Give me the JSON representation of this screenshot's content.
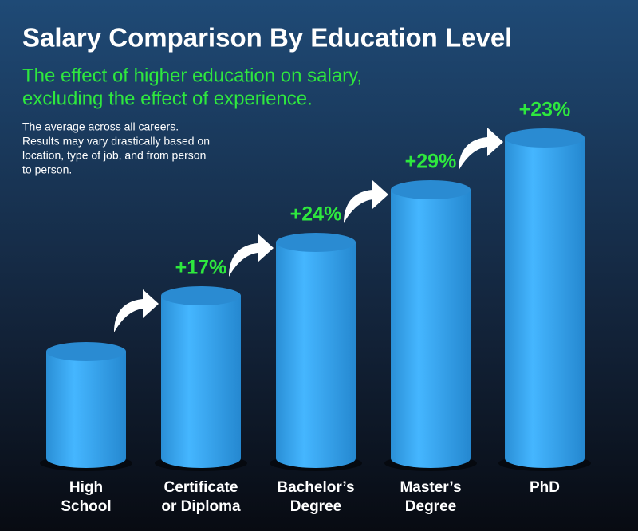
{
  "chart_data": {
    "type": "cylinder",
    "title": "Salary Comparison By Education Level",
    "subtitle": [
      "The effect of higher education on salary,",
      "excluding the effect of experience."
    ],
    "note": [
      "The average across all careers.",
      "Results may vary drastically based on",
      "location, type of job, and from person",
      "to person."
    ],
    "categories": [
      [
        "High",
        "School"
      ],
      [
        "Certificate",
        "or Diploma"
      ],
      [
        "Bachelor’s",
        "Degree"
      ],
      [
        "Master’s",
        "Degree"
      ],
      [
        "PhD"
      ]
    ],
    "values": [
      null,
      17,
      24,
      29,
      23
    ],
    "value_labels": [
      null,
      "+17%",
      "+24%",
      "+29%",
      "+23%"
    ],
    "color": "#3aa9f2",
    "label_color": "#2ee83e"
  }
}
